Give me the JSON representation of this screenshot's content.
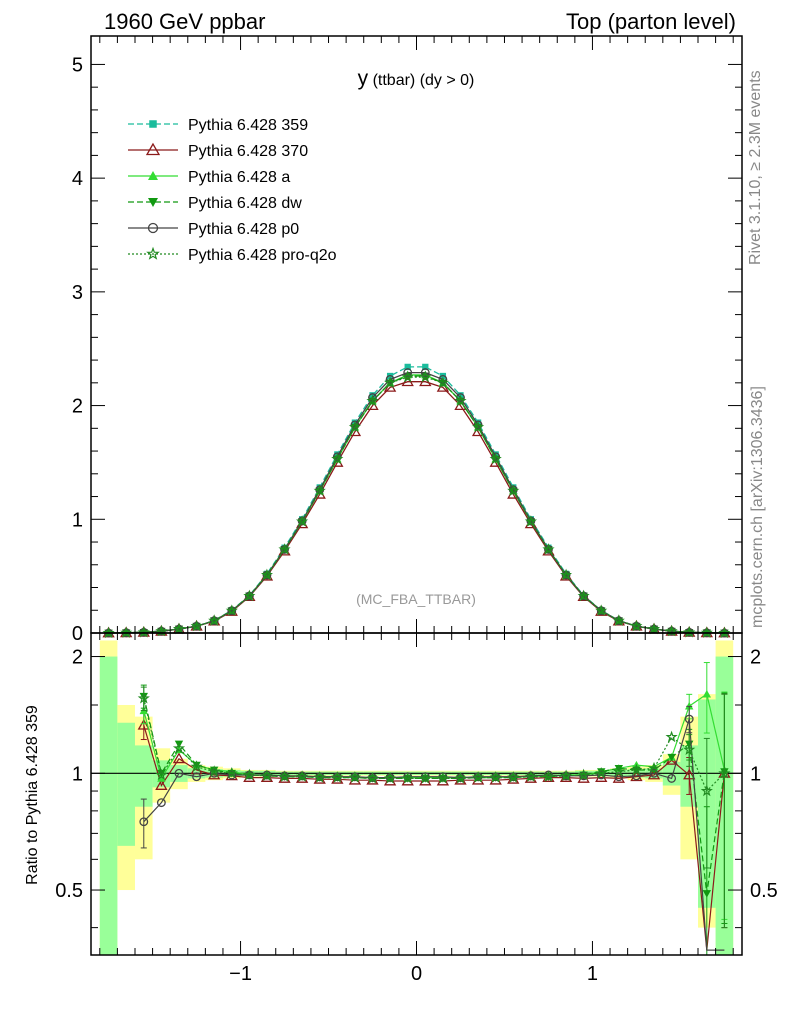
{
  "header": {
    "left": "1960 GeV ppbar",
    "right": "Top (parton level)"
  },
  "side_labels": {
    "rivet": "Rivet 3.1.10, ≥ 2.3M events",
    "mcplots": "mcplots.cern.ch [arXiv:1306.3436]"
  },
  "chart_data": [
    {
      "type": "line",
      "title": "y (ttbar) (dy > 0)",
      "watermark": "(MC_FBA_TTBAR)",
      "xlabel": "",
      "ylabel": "",
      "xlim": [
        -1.85,
        1.85
      ],
      "ylim": [
        0,
        5.25
      ],
      "x_ticks": [
        "−1",
        "0",
        "1"
      ],
      "y_ticks": [
        "0",
        "1",
        "2",
        "3",
        "4",
        "5"
      ],
      "x": [
        -1.75,
        -1.65,
        -1.55,
        -1.45,
        -1.35,
        -1.25,
        -1.15,
        -1.05,
        -0.95,
        -0.85,
        -0.75,
        -0.65,
        -0.55,
        -0.45,
        -0.35,
        -0.25,
        -0.15,
        -0.05,
        0.05,
        0.15,
        0.25,
        0.35,
        0.45,
        0.55,
        0.65,
        0.75,
        0.85,
        0.95,
        1.05,
        1.15,
        1.25,
        1.35,
        1.45,
        1.55,
        1.65,
        1.75
      ],
      "legend_position": "top-left",
      "series": [
        {
          "name": "Pythia 6.428 359",
          "color": "#1abc9c",
          "dash": "6,3",
          "marker": "square",
          "values": [
            0.0,
            0.002,
            0.006,
            0.016,
            0.035,
            0.06,
            0.11,
            0.2,
            0.33,
            0.52,
            0.75,
            1.0,
            1.28,
            1.57,
            1.85,
            2.09,
            2.26,
            2.34,
            2.34,
            2.26,
            2.09,
            1.85,
            1.57,
            1.28,
            1.0,
            0.75,
            0.52,
            0.33,
            0.2,
            0.11,
            0.06,
            0.035,
            0.016,
            0.006,
            0.002,
            0.0
          ]
        },
        {
          "name": "Pythia 6.428 370",
          "color": "#8b1a1a",
          "dash": "",
          "marker": "triangle-open",
          "values": [
            0.0,
            0.002,
            0.006,
            0.015,
            0.034,
            0.06,
            0.105,
            0.19,
            0.32,
            0.5,
            0.72,
            0.96,
            1.22,
            1.5,
            1.77,
            2.0,
            2.16,
            2.21,
            2.21,
            2.16,
            2.0,
            1.77,
            1.5,
            1.22,
            0.96,
            0.72,
            0.5,
            0.32,
            0.19,
            0.105,
            0.06,
            0.034,
            0.015,
            0.006,
            0.002,
            0.0
          ]
        },
        {
          "name": "Pythia 6.428 a",
          "color": "#33dd33",
          "dash": "",
          "marker": "triangle",
          "values": [
            0.0,
            0.002,
            0.006,
            0.016,
            0.035,
            0.06,
            0.108,
            0.196,
            0.325,
            0.51,
            0.735,
            0.98,
            1.25,
            1.53,
            1.81,
            2.04,
            2.2,
            2.27,
            2.27,
            2.2,
            2.04,
            1.81,
            1.53,
            1.25,
            0.98,
            0.735,
            0.51,
            0.325,
            0.196,
            0.108,
            0.06,
            0.035,
            0.016,
            0.006,
            0.002,
            0.0
          ]
        },
        {
          "name": "Pythia 6.428 dw",
          "color": "#119911",
          "dash": "6,3",
          "marker": "triangle-down",
          "values": [
            0.0,
            0.002,
            0.006,
            0.016,
            0.035,
            0.06,
            0.108,
            0.196,
            0.325,
            0.51,
            0.735,
            0.98,
            1.25,
            1.53,
            1.81,
            2.04,
            2.2,
            2.26,
            2.26,
            2.2,
            2.04,
            1.81,
            1.53,
            1.25,
            0.98,
            0.735,
            0.51,
            0.325,
            0.196,
            0.108,
            0.06,
            0.035,
            0.016,
            0.006,
            0.002,
            0.0
          ]
        },
        {
          "name": "Pythia 6.428 p0",
          "color": "#444444",
          "dash": "",
          "marker": "circle-open",
          "values": [
            0.0,
            0.002,
            0.006,
            0.016,
            0.035,
            0.06,
            0.108,
            0.196,
            0.325,
            0.51,
            0.735,
            0.985,
            1.26,
            1.55,
            1.83,
            2.07,
            2.23,
            2.29,
            2.29,
            2.23,
            2.07,
            1.83,
            1.55,
            1.26,
            0.985,
            0.735,
            0.51,
            0.325,
            0.196,
            0.108,
            0.06,
            0.035,
            0.016,
            0.006,
            0.002,
            0.0
          ]
        },
        {
          "name": "Pythia 6.428 pro-q2o",
          "color": "#228b22",
          "dash": "2,2",
          "marker": "star-open",
          "values": [
            0.0,
            0.002,
            0.006,
            0.016,
            0.035,
            0.06,
            0.108,
            0.196,
            0.325,
            0.51,
            0.735,
            0.98,
            1.25,
            1.53,
            1.81,
            2.04,
            2.2,
            2.25,
            2.25,
            2.2,
            2.04,
            1.81,
            1.53,
            1.25,
            0.98,
            0.735,
            0.51,
            0.325,
            0.196,
            0.108,
            0.06,
            0.035,
            0.016,
            0.006,
            0.002,
            0.0
          ]
        }
      ]
    },
    {
      "type": "line",
      "title": "",
      "xlabel": "",
      "ylabel": "Ratio to Pythia 6.428 359",
      "xlim": [
        -1.85,
        1.85
      ],
      "ylim": [
        0.34,
        2.3
      ],
      "y_ticks": [
        "0.5",
        "1",
        "2"
      ],
      "reference_line": 1,
      "x": [
        -1.75,
        -1.65,
        -1.55,
        -1.45,
        -1.35,
        -1.25,
        -1.15,
        -1.05,
        -0.95,
        -0.85,
        -0.75,
        -0.65,
        -0.55,
        -0.45,
        -0.35,
        -0.25,
        -0.15,
        -0.05,
        0.05,
        0.15,
        0.25,
        0.35,
        0.45,
        0.55,
        0.65,
        0.75,
        0.85,
        0.95,
        1.05,
        1.15,
        1.25,
        1.35,
        1.45,
        1.55,
        1.65,
        1.75
      ],
      "bands": {
        "yellow_half_height": [
          1.2,
          0.5,
          0.4,
          0.16,
          0.09,
          0.05,
          0.04,
          0.03,
          0.02,
          0.02,
          0.015,
          0.015,
          0.015,
          0.015,
          0.015,
          0.015,
          0.015,
          0.015,
          0.015,
          0.015,
          0.015,
          0.015,
          0.015,
          0.015,
          0.015,
          0.015,
          0.015,
          0.02,
          0.02,
          0.03,
          0.04,
          0.05,
          0.12,
          0.4,
          0.6,
          1.2
        ],
        "green_half_height": [
          1.0,
          0.35,
          0.18,
          0.08,
          0.05,
          0.03,
          0.025,
          0.02,
          0.015,
          0.015,
          0.01,
          0.01,
          0.01,
          0.01,
          0.01,
          0.01,
          0.01,
          0.01,
          0.01,
          0.01,
          0.01,
          0.01,
          0.01,
          0.01,
          0.01,
          0.01,
          0.01,
          0.015,
          0.015,
          0.02,
          0.025,
          0.03,
          0.07,
          0.18,
          0.55,
          1.0
        ],
        "yellow": "#ffff99",
        "green": "#99ff99"
      },
      "series": [
        {
          "name": "Pythia 6.428 370",
          "color": "#8b1a1a",
          "values": [
            null,
            null,
            1.33,
            0.93,
            1.09,
            1.02,
            0.99,
            0.985,
            0.975,
            0.975,
            0.97,
            0.97,
            0.965,
            0.965,
            0.96,
            0.96,
            0.955,
            0.955,
            0.955,
            0.955,
            0.96,
            0.96,
            0.96,
            0.965,
            0.97,
            0.975,
            0.975,
            0.97,
            0.975,
            0.97,
            0.98,
            0.99,
            1.08,
            0.99,
            0.35,
            1.0
          ]
        },
        {
          "name": "Pythia 6.428 a",
          "color": "#33dd33",
          "values": [
            null,
            null,
            1.45,
            0.97,
            1.15,
            1.05,
            1.02,
            1.01,
            0.99,
            0.99,
            0.985,
            0.98,
            0.98,
            0.98,
            0.975,
            0.975,
            0.975,
            0.975,
            0.975,
            0.975,
            0.975,
            0.975,
            0.975,
            0.98,
            0.98,
            0.985,
            0.99,
            0.99,
            1.01,
            1.03,
            1.05,
            1.04,
            1.1,
            1.49,
            1.6,
            1.02
          ]
        },
        {
          "name": "Pythia 6.428 dw",
          "color": "#119911",
          "values": [
            null,
            null,
            1.58,
            1.0,
            1.19,
            1.05,
            1.02,
            1.0,
            0.99,
            0.985,
            0.98,
            0.98,
            0.975,
            0.975,
            0.975,
            0.97,
            0.97,
            0.97,
            0.97,
            0.97,
            0.97,
            0.975,
            0.975,
            0.975,
            0.98,
            0.98,
            0.985,
            0.99,
            1.01,
            1.03,
            1.02,
            1.02,
            1.1,
            1.19,
            0.49,
            1.01
          ]
        },
        {
          "name": "Pythia 6.428 p0",
          "color": "#444444",
          "values": [
            null,
            null,
            0.75,
            0.84,
            1.0,
            0.98,
            1.0,
            0.99,
            0.99,
            0.99,
            0.985,
            0.985,
            0.98,
            0.98,
            0.98,
            0.975,
            0.975,
            0.98,
            0.98,
            0.98,
            0.975,
            0.98,
            0.98,
            0.98,
            0.985,
            0.99,
            0.985,
            0.985,
            0.99,
            0.98,
            0.985,
            1.0,
            0.97,
            1.38,
            0.35,
            0.35
          ]
        },
        {
          "name": "Pythia 6.428 pro-q2o",
          "color": "#228b22",
          "values": [
            null,
            null,
            1.56,
            0.99,
            1.16,
            1.04,
            1.01,
            1.0,
            0.99,
            0.985,
            0.98,
            0.98,
            0.975,
            0.975,
            0.975,
            0.97,
            0.97,
            0.97,
            0.97,
            0.97,
            0.97,
            0.975,
            0.975,
            0.975,
            0.98,
            0.98,
            0.985,
            0.99,
            1.0,
            1.01,
            1.02,
            1.03,
            1.24,
            1.15,
            0.9,
            1.0
          ]
        }
      ]
    }
  ]
}
